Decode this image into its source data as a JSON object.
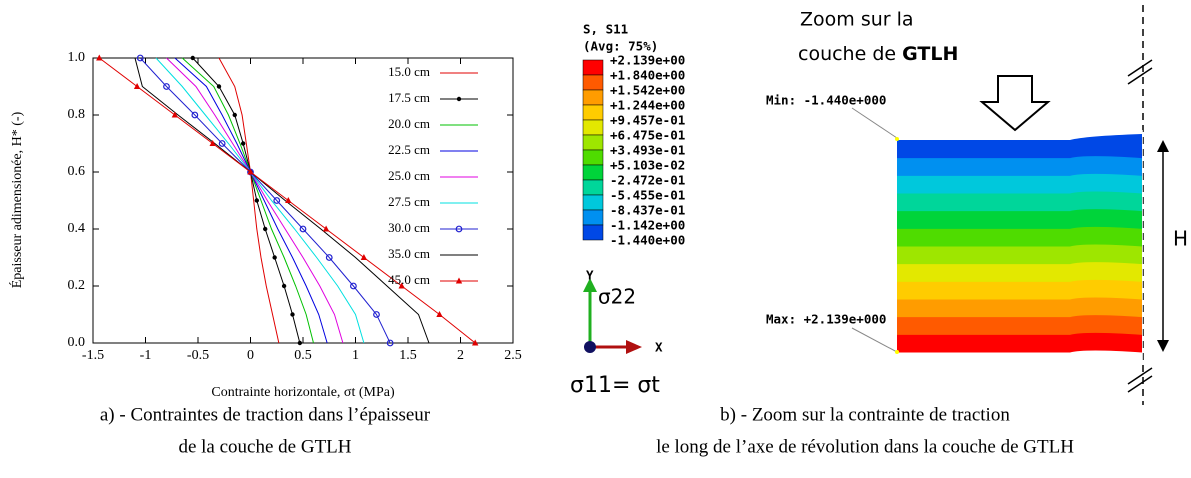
{
  "chart_data": {
    "type": "line",
    "x_label": "Contrainte horizontale, σt (MPa)",
    "y_label": "Épaisseur adimensionée, H* (-)",
    "xlim": [
      -1.5,
      2.5
    ],
    "ylim": [
      0,
      1
    ],
    "xticks": [
      -1.5,
      -1,
      -0.5,
      0,
      0.5,
      1,
      1.5,
      2,
      2.5
    ],
    "yticks": [
      {
        "value": 0,
        "label": "0.0"
      },
      0.2,
      0.4,
      0.6,
      0.8,
      {
        "value": 1,
        "label": "1.0"
      }
    ],
    "grid": false,
    "legend": "upper right",
    "y": [
      0,
      0.1,
      0.2,
      0.3,
      0.4,
      0.5,
      0.6,
      0.7,
      0.8,
      0.9,
      1
    ],
    "series": [
      {
        "name": "15.0 cm",
        "color": "#e00000",
        "marker": "none",
        "x": [
          0.27,
          0.21,
          0.15,
          0.1,
          0.06,
          0.03,
          0,
          -0.04,
          -0.08,
          -0.15,
          -0.3
        ]
      },
      {
        "name": "17.5 cm",
        "color": "#000000",
        "marker": "dot",
        "x": [
          0.47,
          0.4,
          0.32,
          0.23,
          0.14,
          0.06,
          0,
          -0.07,
          -0.15,
          -0.3,
          -0.55
        ]
      },
      {
        "name": "20.0 cm",
        "color": "#00c000",
        "marker": "none",
        "x": [
          0.6,
          0.53,
          0.43,
          0.32,
          0.2,
          0.1,
          0,
          -0.1,
          -0.21,
          -0.35,
          -0.65
        ]
      },
      {
        "name": "22.5 cm",
        "color": "#0000e0",
        "marker": "none",
        "x": [
          0.73,
          0.65,
          0.53,
          0.4,
          0.26,
          0.13,
          0,
          -0.13,
          -0.27,
          -0.42,
          -0.72
        ]
      },
      {
        "name": "25.0 cm",
        "color": "#e000e0",
        "marker": "none",
        "x": [
          0.88,
          0.8,
          0.66,
          0.5,
          0.33,
          0.16,
          0,
          -0.17,
          -0.34,
          -0.52,
          -0.8
        ]
      },
      {
        "name": "27.5 cm",
        "color": "#00e0e0",
        "marker": "none",
        "x": [
          1.08,
          1.0,
          0.83,
          0.63,
          0.42,
          0.2,
          0,
          -0.21,
          -0.43,
          -0.65,
          -0.9
        ]
      },
      {
        "name": "30.0 cm",
        "color": "#2020d0",
        "marker": "circle",
        "x": [
          1.33,
          1.2,
          0.98,
          0.75,
          0.5,
          0.25,
          0,
          -0.27,
          -0.53,
          -0.8,
          -1.05
        ]
      },
      {
        "name": "35.0 cm",
        "color": "#000000",
        "marker": "none",
        "x": [
          1.7,
          1.6,
          1.3,
          1.0,
          0.67,
          0.33,
          0,
          -0.34,
          -0.69,
          -1.03,
          -1.1
        ]
      },
      {
        "name": "45.0 cm",
        "color": "#e00000",
        "marker": "triangle",
        "x": [
          2.14,
          1.8,
          1.44,
          1.08,
          0.72,
          0.36,
          0,
          -0.36,
          -0.72,
          -1.08,
          -1.44
        ]
      }
    ]
  },
  "contour": {
    "title": "S, S11",
    "subtitle": "(Avg: 75%)",
    "levels": [
      "+2.139e+00",
      "+1.840e+00",
      "+1.542e+00",
      "+1.244e+00",
      "+9.457e-01",
      "+6.475e-01",
      "+3.493e-01",
      "+5.103e-02",
      "-2.472e-01",
      "-5.455e-01",
      "-8.437e-01",
      "-1.142e+00",
      "-1.440e+00"
    ],
    "colors": [
      "#ff0000",
      "#ff5a00",
      "#ff9c00",
      "#ffcc00",
      "#e3e800",
      "#9ee600",
      "#4fdc00",
      "#00d43a",
      "#00d69a",
      "#00c8dc",
      "#0090f0",
      "#0048e6"
    ],
    "min_label": "Min: -1.440e+000",
    "max_label": "Max: +2.139e+000"
  },
  "triad": {
    "y": "Y",
    "x": "X",
    "sigma_y": "σ22",
    "sigma_x": "σ11= σt"
  },
  "annotation": {
    "line1": "Zoom sur la",
    "line2": "couche de ",
    "line2_bold": "GTLH",
    "height": "H"
  },
  "captions": {
    "a": [
      "a) - Contraintes de traction dans l’épaisseur",
      "de la couche de GTLH"
    ],
    "b": [
      "b) - Zoom sur la contrainte de traction",
      "le long de l’axe de révolution dans la couche de GTLH"
    ]
  }
}
